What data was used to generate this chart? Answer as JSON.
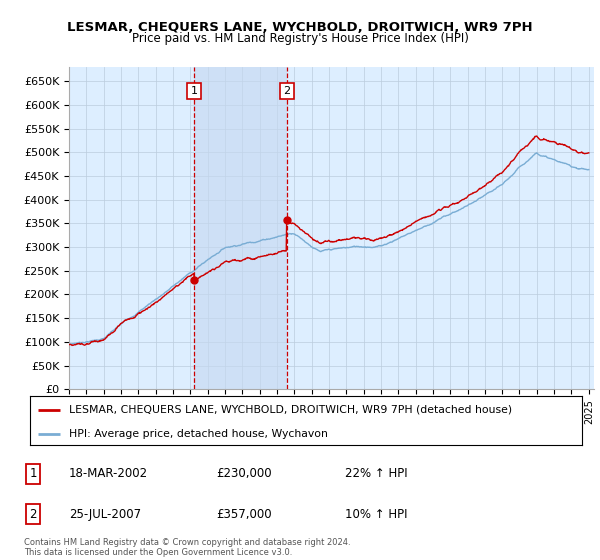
{
  "title": "LESMAR, CHEQUERS LANE, WYCHBOLD, DROITWICH, WR9 7PH",
  "subtitle": "Price paid vs. HM Land Registry's House Price Index (HPI)",
  "ylabel_ticks": [
    "£0",
    "£50K",
    "£100K",
    "£150K",
    "£200K",
    "£250K",
    "£300K",
    "£350K",
    "£400K",
    "£450K",
    "£500K",
    "£550K",
    "£600K",
    "£650K"
  ],
  "ytick_values": [
    0,
    50000,
    100000,
    150000,
    200000,
    250000,
    300000,
    350000,
    400000,
    450000,
    500000,
    550000,
    600000,
    650000
  ],
  "ylim": [
    0,
    680000
  ],
  "x_start_year": 1995,
  "x_end_year": 2025,
  "sale1_year": 2002.21,
  "sale1_price": 230000,
  "sale2_year": 2007.56,
  "sale2_price": 357000,
  "hpi_line_color": "#7aadd4",
  "price_line_color": "#cc0000",
  "bg_color": "#ddeeff",
  "shade_color": "#c5d8f0",
  "grid_color": "#bbccdd",
  "legend_label_red": "LESMAR, CHEQUERS LANE, WYCHBOLD, DROITWICH, WR9 7PH (detached house)",
  "legend_label_blue": "HPI: Average price, detached house, Wychavon",
  "table_rows": [
    {
      "num": "1",
      "date": "18-MAR-2002",
      "price": "£230,000",
      "hpi": "22% ↑ HPI"
    },
    {
      "num": "2",
      "date": "25-JUL-2007",
      "price": "£357,000",
      "hpi": "10% ↑ HPI"
    }
  ],
  "footer": "Contains HM Land Registry data © Crown copyright and database right 2024.\nThis data is licensed under the Open Government Licence v3.0."
}
